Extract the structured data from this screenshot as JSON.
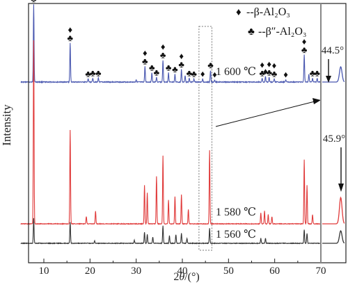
{
  "chart_data": {
    "type": "line",
    "title": "",
    "xlabel_prefix": "2",
    "xlabel_theta": "θ",
    "xlabel_suffix": "/(°)",
    "ylabel": "Intensity",
    "xlim": [
      5,
      75
    ],
    "x_ticks": [
      10,
      20,
      30,
      40,
      50,
      60,
      70
    ],
    "inset_break_x": 70,
    "legend": {
      "beta_symbol": "♦",
      "beta_text": "--β-Al₂O₃",
      "beta_pp_symbol": "♣",
      "beta_pp_text": "--β″-Al₂O₃"
    },
    "series": [
      {
        "name": "1 600 ℃",
        "color": "#4a58b0",
        "peaks": [
          {
            "x": 7.8,
            "h": 1.0
          },
          {
            "x": 15.7,
            "h": 0.5
          },
          {
            "x": 19.6,
            "h": 0.04
          },
          {
            "x": 20.6,
            "h": 0.05
          },
          {
            "x": 21.8,
            "h": 0.05
          },
          {
            "x": 30.0,
            "h": 0.03
          },
          {
            "x": 31.9,
            "h": 0.2
          },
          {
            "x": 33.4,
            "h": 0.12
          },
          {
            "x": 34.4,
            "h": 0.06
          },
          {
            "x": 35.8,
            "h": 0.28
          },
          {
            "x": 37.0,
            "h": 0.12
          },
          {
            "x": 38.4,
            "h": 0.1
          },
          {
            "x": 39.8,
            "h": 0.16
          },
          {
            "x": 40.6,
            "h": 0.08
          },
          {
            "x": 41.5,
            "h": 0.05
          },
          {
            "x": 42.5,
            "h": 0.04
          },
          {
            "x": 44.4,
            "h": 0.04
          },
          {
            "x": 46.1,
            "h": 0.15
          },
          {
            "x": 47.0,
            "h": 0.03
          },
          {
            "x": 57.3,
            "h": 0.05
          },
          {
            "x": 58.0,
            "h": 0.07
          },
          {
            "x": 58.8,
            "h": 0.06
          },
          {
            "x": 59.9,
            "h": 0.04
          },
          {
            "x": 62.4,
            "h": 0.03
          },
          {
            "x": 66.4,
            "h": 0.35
          },
          {
            "x": 67.4,
            "h": 0.1
          },
          {
            "x": 68.2,
            "h": 0.05
          },
          {
            "x": 69.2,
            "h": 0.05
          }
        ],
        "inset_peak": {
          "x": 44.5,
          "h": 0.2
        }
      },
      {
        "name": "1 580 ℃",
        "color": "#e03a3a",
        "peaks": [
          {
            "x": 7.8,
            "h": 1.0
          },
          {
            "x": 15.7,
            "h": 0.51
          },
          {
            "x": 19.2,
            "h": 0.04
          },
          {
            "x": 21.2,
            "h": 0.07
          },
          {
            "x": 31.8,
            "h": 0.21
          },
          {
            "x": 32.4,
            "h": 0.17
          },
          {
            "x": 34.4,
            "h": 0.26
          },
          {
            "x": 35.8,
            "h": 0.37
          },
          {
            "x": 37.0,
            "h": 0.13
          },
          {
            "x": 38.4,
            "h": 0.15
          },
          {
            "x": 39.8,
            "h": 0.16
          },
          {
            "x": 41.3,
            "h": 0.08
          },
          {
            "x": 45.9,
            "h": 0.4
          },
          {
            "x": 57.0,
            "h": 0.06
          },
          {
            "x": 57.8,
            "h": 0.07
          },
          {
            "x": 58.6,
            "h": 0.05
          },
          {
            "x": 59.4,
            "h": 0.04
          },
          {
            "x": 66.4,
            "h": 0.35
          },
          {
            "x": 67.0,
            "h": 0.21
          },
          {
            "x": 68.2,
            "h": 0.05
          }
        ],
        "inset_peak": {
          "x": 45.9,
          "h": 0.4
        }
      },
      {
        "name": "1 560 ℃",
        "color": "#333333",
        "peaks": [
          {
            "x": 7.8,
            "h": 1.0
          },
          {
            "x": 15.7,
            "h": 0.85
          },
          {
            "x": 21.0,
            "h": 0.1
          },
          {
            "x": 29.6,
            "h": 0.12
          },
          {
            "x": 31.8,
            "h": 0.45
          },
          {
            "x": 32.4,
            "h": 0.35
          },
          {
            "x": 33.6,
            "h": 0.25
          },
          {
            "x": 35.8,
            "h": 0.7
          },
          {
            "x": 37.2,
            "h": 0.3
          },
          {
            "x": 38.6,
            "h": 0.35
          },
          {
            "x": 39.8,
            "h": 0.4
          },
          {
            "x": 41.0,
            "h": 0.2
          },
          {
            "x": 45.9,
            "h": 0.6
          },
          {
            "x": 57.0,
            "h": 0.2
          },
          {
            "x": 58.0,
            "h": 0.2
          },
          {
            "x": 66.4,
            "h": 0.55
          },
          {
            "x": 67.0,
            "h": 0.4
          }
        ],
        "inset_peak": {
          "x": 45.9,
          "h": 0.55
        }
      }
    ],
    "markers_1600": [
      {
        "x": 7.8,
        "sym": "beta"
      },
      {
        "x": 7.8,
        "sym": "beta_pp"
      },
      {
        "x": 15.7,
        "sym": "beta"
      },
      {
        "x": 15.7,
        "sym": "beta_pp"
      },
      {
        "x": 19.6,
        "sym": "beta_pp"
      },
      {
        "x": 20.6,
        "sym": "beta_pp"
      },
      {
        "x": 21.8,
        "sym": "beta_pp"
      },
      {
        "x": 31.9,
        "sym": "beta"
      },
      {
        "x": 31.9,
        "sym": "beta_pp"
      },
      {
        "x": 33.4,
        "sym": "beta_pp"
      },
      {
        "x": 34.4,
        "sym": "beta_pp"
      },
      {
        "x": 35.8,
        "sym": "beta"
      },
      {
        "x": 35.8,
        "sym": "beta_pp"
      },
      {
        "x": 37.0,
        "sym": "beta_pp"
      },
      {
        "x": 38.4,
        "sym": "beta_pp"
      },
      {
        "x": 39.8,
        "sym": "beta"
      },
      {
        "x": 39.8,
        "sym": "beta_pp"
      },
      {
        "x": 41.5,
        "sym": "beta_pp"
      },
      {
        "x": 42.5,
        "sym": "beta_pp"
      },
      {
        "x": 44.4,
        "sym": "beta"
      },
      {
        "x": 46.1,
        "sym": "beta_pp"
      },
      {
        "x": 47.0,
        "sym": "beta"
      },
      {
        "x": 57.3,
        "sym": "beta"
      },
      {
        "x": 57.3,
        "sym": "beta_pp"
      },
      {
        "x": 58.0,
        "sym": "beta"
      },
      {
        "x": 58.8,
        "sym": "beta"
      },
      {
        "x": 58.8,
        "sym": "beta_pp"
      },
      {
        "x": 59.9,
        "sym": "beta"
      },
      {
        "x": 59.9,
        "sym": "beta_pp"
      },
      {
        "x": 62.4,
        "sym": "beta"
      },
      {
        "x": 66.4,
        "sym": "beta"
      },
      {
        "x": 66.4,
        "sym": "beta_pp"
      },
      {
        "x": 68.2,
        "sym": "beta_pp"
      },
      {
        "x": 69.2,
        "sym": "beta_pp"
      }
    ],
    "annotations": {
      "inset_1600": "44.5°",
      "inset_1580": "45.9°"
    }
  }
}
